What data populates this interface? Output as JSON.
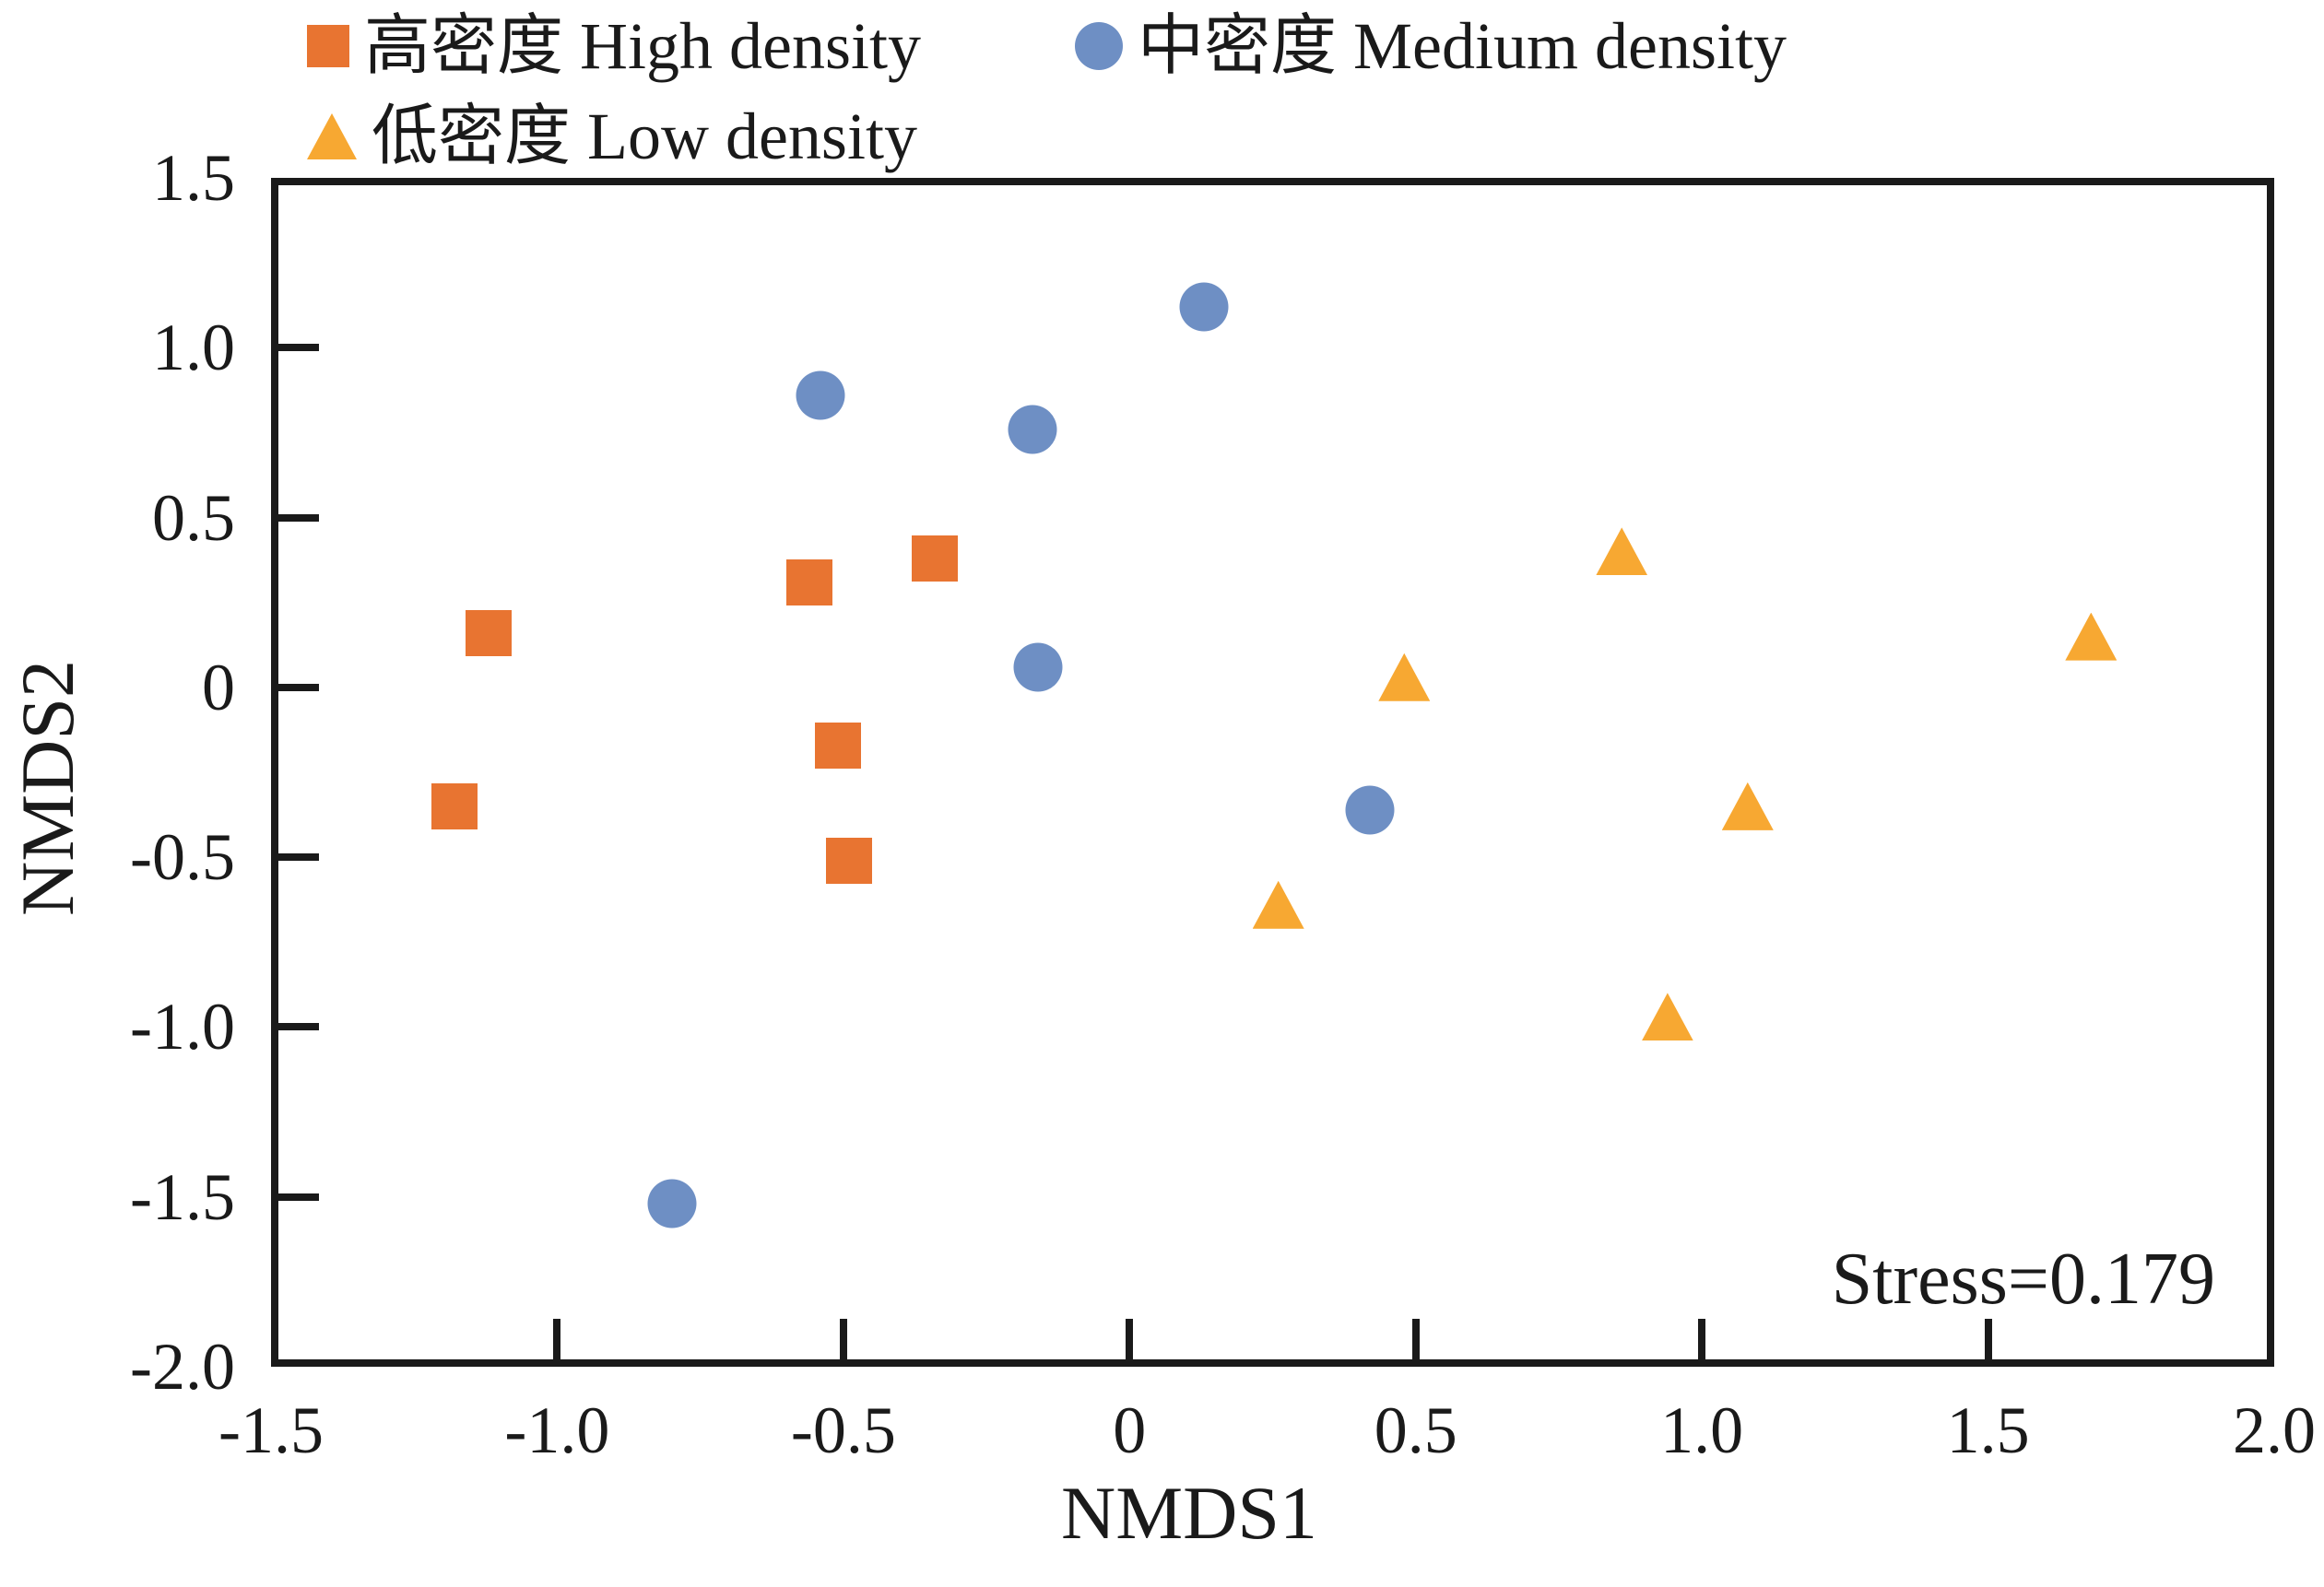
{
  "annotations": {
    "stress_label": "Stress=0.179"
  },
  "chart_data": {
    "type": "scatter",
    "title": "",
    "xlabel": "NMDS1",
    "ylabel": "NMDS2",
    "xlim": [
      -1.5,
      2.0
    ],
    "ylim": [
      -2.0,
      1.5
    ],
    "grid": false,
    "legend_position": "top-left",
    "annotation": "Stress=0.179",
    "xtick_values": [
      -1.5,
      -1.0,
      -0.5,
      0,
      0.5,
      1.0,
      1.5,
      2.0
    ],
    "xtick_labels": [
      "-1.5",
      "-1.0",
      "-0.5",
      "0",
      "0.5",
      "1.0",
      "1.5",
      "2.0"
    ],
    "ytick_values": [
      1.5,
      1.0,
      0.5,
      0,
      -0.5,
      -1.0,
      -1.5,
      -2.0
    ],
    "ytick_labels": [
      "1.5",
      "1.0",
      "0.5",
      "0",
      "-0.5",
      "-1.0",
      "-1.5",
      "-2.0"
    ],
    "series": [
      {
        "name": "高密度 High density",
        "marker": "square",
        "color": "#E87431",
        "points": [
          [
            -0.56,
            0.31
          ],
          [
            -0.34,
            0.38
          ],
          [
            -1.12,
            0.16
          ],
          [
            -0.51,
            -0.17
          ],
          [
            -1.18,
            -0.35
          ],
          [
            -0.49,
            -0.51
          ]
        ]
      },
      {
        "name": "中密度 Medium density",
        "marker": "circle",
        "color": "#6E8FC4",
        "points": [
          [
            0.13,
            1.12
          ],
          [
            -0.54,
            0.86
          ],
          [
            -0.17,
            0.76
          ],
          [
            -0.16,
            0.06
          ],
          [
            0.42,
            -0.36
          ],
          [
            -0.8,
            -1.52
          ]
        ]
      },
      {
        "name": "低密度 Low density",
        "marker": "triangle",
        "color": "#F7A832",
        "points": [
          [
            0.86,
            0.4
          ],
          [
            1.68,
            0.15
          ],
          [
            0.48,
            0.03
          ],
          [
            1.08,
            -0.35
          ],
          [
            0.26,
            -0.64
          ],
          [
            0.94,
            -0.97
          ]
        ]
      }
    ]
  }
}
